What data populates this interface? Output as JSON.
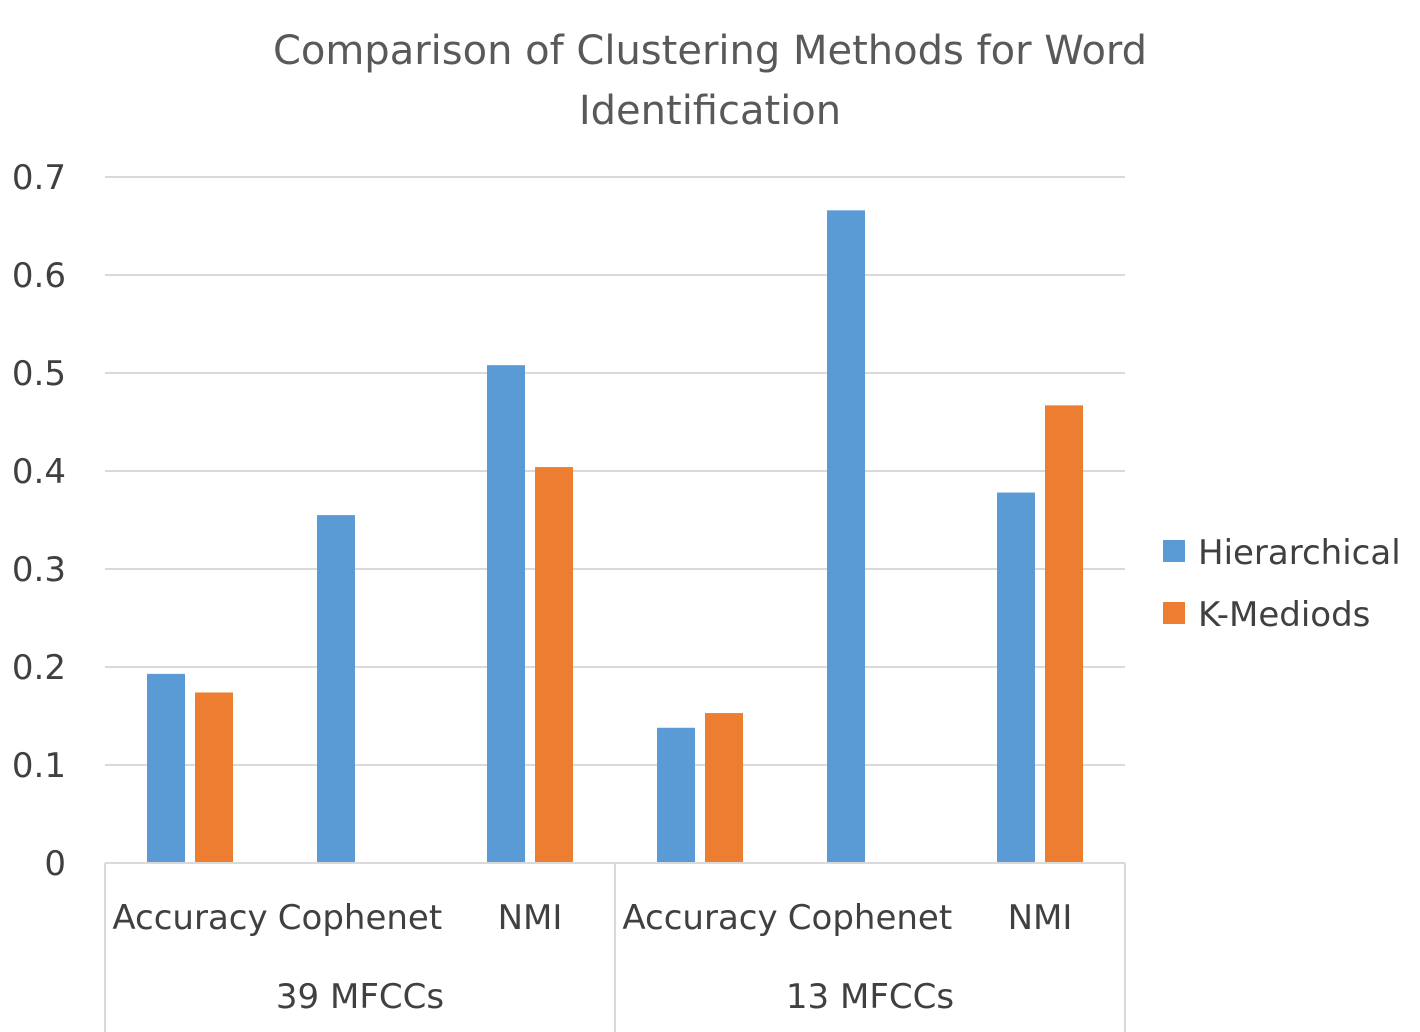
{
  "chart_data": {
    "type": "bar",
    "title_lines": [
      "Comparison of Clustering Methods for Word",
      "Identification"
    ],
    "groups": [
      {
        "label": "39 MFCCs",
        "categories": [
          "Accuracy",
          "Cophenet",
          "NMI"
        ]
      },
      {
        "label": "13 MFCCs",
        "categories": [
          "Accuracy",
          "Cophenet",
          "NMI"
        ]
      }
    ],
    "series": [
      {
        "name": "Hierarchical",
        "color": "#5B9BD5",
        "values": [
          0.193,
          0.355,
          0.508,
          0.138,
          0.666,
          0.378
        ]
      },
      {
        "name": "K-Mediods",
        "color": "#ED7D31",
        "values": [
          0.174,
          null,
          0.404,
          0.153,
          null,
          0.467
        ]
      }
    ],
    "ylim": [
      0,
      0.7
    ],
    "yticks": [
      "0",
      "0.1",
      "0.2",
      "0.3",
      "0.4",
      "0.5",
      "0.6",
      "0.7"
    ],
    "grid": true,
    "legend_position": "right"
  }
}
